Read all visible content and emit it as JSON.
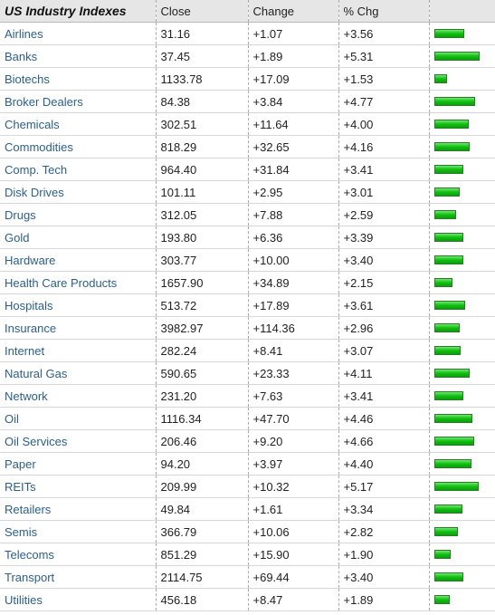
{
  "header": {
    "title": "US Industry Indexes",
    "columns": [
      "Close",
      "Change",
      "% Chg"
    ]
  },
  "rows": [
    [
      "Airlines",
      "31.16",
      "+1.07",
      "+3.56"
    ],
    [
      "Banks",
      "37.45",
      "+1.89",
      "+5.31"
    ],
    [
      "Biotechs",
      "1133.78",
      "+17.09",
      "+1.53"
    ],
    [
      "Broker Dealers",
      "84.38",
      "+3.84",
      "+4.77"
    ],
    [
      "Chemicals",
      "302.51",
      "+11.64",
      "+4.00"
    ],
    [
      "Commodities",
      "818.29",
      "+32.65",
      "+4.16"
    ],
    [
      "Comp. Tech",
      "964.40",
      "+31.84",
      "+3.41"
    ],
    [
      "Disk Drives",
      "101.11",
      "+2.95",
      "+3.01"
    ],
    [
      "Drugs",
      "312.05",
      "+7.88",
      "+2.59"
    ],
    [
      "Gold",
      "193.80",
      "+6.36",
      "+3.39"
    ],
    [
      "Hardware",
      "303.77",
      "+10.00",
      "+3.40"
    ],
    [
      "Health Care Products",
      "1657.90",
      "+34.89",
      "+2.15"
    ],
    [
      "Hospitals",
      "513.72",
      "+17.89",
      "+3.61"
    ],
    [
      "Insurance",
      "3982.97",
      "+114.36",
      "+2.96"
    ],
    [
      "Internet",
      "282.24",
      "+8.41",
      "+3.07"
    ],
    [
      "Natural Gas",
      "590.65",
      "+23.33",
      "+4.11"
    ],
    [
      "Network",
      "231.20",
      "+7.63",
      "+3.41"
    ],
    [
      "Oil",
      "1116.34",
      "+47.70",
      "+4.46"
    ],
    [
      "Oil Services",
      "206.46",
      "+9.20",
      "+4.66"
    ],
    [
      "Paper",
      "94.20",
      "+3.97",
      "+4.40"
    ],
    [
      "REITs",
      "209.99",
      "+10.32",
      "+5.17"
    ],
    [
      "Retailers",
      "49.84",
      "+1.61",
      "+3.34"
    ],
    [
      "Semis",
      "366.79",
      "+10.06",
      "+2.82"
    ],
    [
      "Telecoms",
      "851.29",
      "+15.90",
      "+1.90"
    ],
    [
      "Transport",
      "2114.75",
      "+69.44",
      "+3.40"
    ],
    [
      "Utilities",
      "456.18",
      "+8.47",
      "+1.89"
    ]
  ]
}
